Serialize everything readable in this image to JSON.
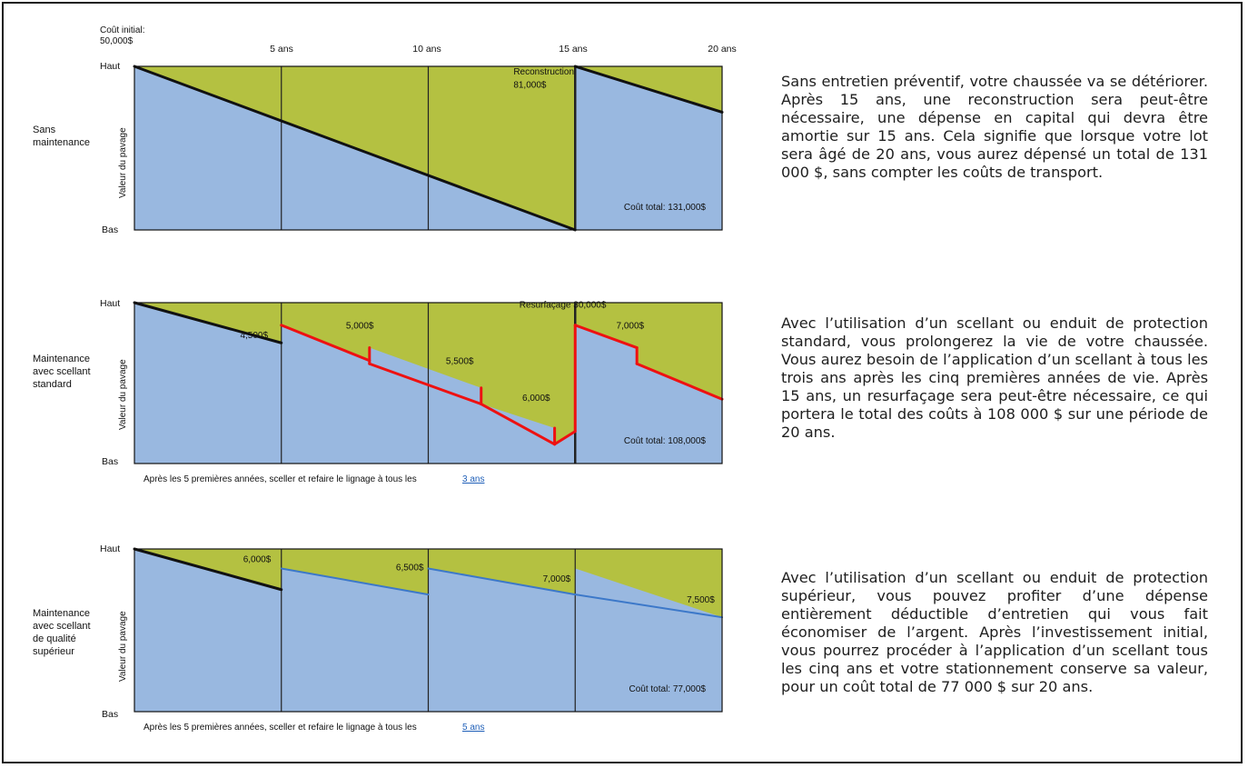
{
  "colors": {
    "sky": "#99b8e0",
    "green": "#b4c141",
    "red": "#ee1111",
    "blue_line": "#3c78c9",
    "border": "#1a1a1a"
  },
  "chart_data": [
    {
      "type": "line",
      "row_label": [
        "Sans",
        "maintenance"
      ],
      "initial_cost": [
        "Coût initial:",
        "50,000$"
      ],
      "x_ticks": [
        "5 ans",
        "10 ans",
        "15 ans",
        "20 ans"
      ],
      "xlim": [
        0,
        20
      ],
      "y_top": "Haut",
      "y_bottom": "Bas",
      "ylabel": "Valeur du pavage",
      "line_color": "black",
      "segments": [
        [
          [
            0,
            1.0
          ],
          [
            15,
            0.0
          ]
        ],
        [
          [
            15,
            1.0
          ],
          [
            20,
            0.72
          ]
        ]
      ],
      "vertical_drops": [
        15
      ],
      "annotations": [
        {
          "text": "Reconstruction",
          "x": 12.9,
          "y": 0.95
        },
        {
          "text": "81,000$",
          "x": 12.9,
          "y": 0.87
        }
      ],
      "total": "Coût total: 131,000$"
    },
    {
      "type": "line",
      "row_label": [
        "Maintenance",
        "avec scellant",
        "standard"
      ],
      "x_ticks": [
        "5 ans",
        "10 ans",
        "15 ans",
        "20 ans"
      ],
      "xlim": [
        0,
        20
      ],
      "y_top": "Haut",
      "y_bottom": "Bas",
      "ylabel": "Valeur du pavage",
      "segments_black": [
        [
          [
            0,
            1.0
          ],
          [
            5,
            0.75
          ]
        ]
      ],
      "segments_red": [
        [
          [
            5,
            0.86
          ],
          [
            8,
            0.64
          ]
        ],
        [
          [
            8,
            0.72
          ],
          [
            8,
            0.62
          ]
        ],
        [
          [
            8,
            0.62
          ],
          [
            11.8,
            0.37
          ]
        ],
        [
          [
            11.8,
            0.47
          ],
          [
            11.8,
            0.37
          ]
        ],
        [
          [
            11.8,
            0.37
          ],
          [
            14.3,
            0.12
          ]
        ],
        [
          [
            14.3,
            0.22
          ],
          [
            14.3,
            0.12
          ]
        ],
        [
          [
            14.3,
            0.12
          ],
          [
            15,
            0.2
          ]
        ],
        [
          [
            15,
            0.2
          ],
          [
            15,
            0.86
          ]
        ],
        [
          [
            15,
            0.86
          ],
          [
            17.1,
            0.72
          ]
        ],
        [
          [
            17.1,
            0.72
          ],
          [
            17.1,
            0.62
          ]
        ],
        [
          [
            17.1,
            0.62
          ],
          [
            20,
            0.4
          ]
        ]
      ],
      "annotations": [
        {
          "text": "4,500$",
          "x": 3.6,
          "y": 0.78
        },
        {
          "text": "5,000$",
          "x": 7.2,
          "y": 0.84
        },
        {
          "text": "5,500$",
          "x": 10.6,
          "y": 0.62
        },
        {
          "text": "6,000$",
          "x": 13.2,
          "y": 0.39
        },
        {
          "text": "Resurfaçage 30,000$",
          "x": 13.1,
          "y": 0.97
        },
        {
          "text": "7,000$",
          "x": 16.4,
          "y": 0.84
        }
      ],
      "total": "Coût total: 108,000$",
      "note": "Après les 5 premières années,  sceller et refaire le lignage à tous les",
      "note_link": "3 ans"
    },
    {
      "type": "line",
      "row_label": [
        "Maintenance",
        "avec scellant",
        "de qualité",
        "supérieur"
      ],
      "x_ticks": [
        "5 ans",
        "10 ans",
        "15 ans",
        "20 ans"
      ],
      "xlim": [
        0,
        20
      ],
      "y_top": "Haut",
      "y_bottom": "Bas",
      "ylabel": "Valeur du pavage",
      "segments_black": [
        [
          [
            0,
            1.0
          ],
          [
            5,
            0.75
          ]
        ]
      ],
      "segments_blue": [
        [
          [
            5,
            0.88
          ],
          [
            10,
            0.72
          ]
        ],
        [
          [
            10,
            0.88
          ],
          [
            15,
            0.72
          ]
        ],
        [
          [
            15,
            0.72
          ],
          [
            20,
            0.58
          ]
        ]
      ],
      "annotations": [
        {
          "text": "6,000$",
          "x": 3.7,
          "y": 0.92
        },
        {
          "text": "6,500$",
          "x": 8.9,
          "y": 0.87
        },
        {
          "text": "7,000$",
          "x": 13.9,
          "y": 0.8
        },
        {
          "text": "7,500$",
          "x": 18.8,
          "y": 0.67
        }
      ],
      "total": "Coût total: 77,000$",
      "note": "Après les 5 premières années,  sceller et refaire le lignage à tous les",
      "note_link": "5 ans"
    }
  ],
  "descriptions": [
    "Sans entretien préventif, votre chaussée va se détériorer. Après 15 ans, une reconstruction sera peut-être nécessaire, une dépense en capital qui devra être amortie sur 15 ans. Cela signifie que lorsque votre lot sera âgé de 20 ans, vous aurez dépensé un total de 131 000 $, sans compter les coûts de transport.",
    "Avec l’utilisation d’un scellant ou enduit de protection standard, vous prolongerez la vie de votre chaussée. Vous aurez besoin de l’application d’un scellant à tous les trois ans après les cinq premières années de vie. Après 15 ans, un resurfaçage sera peut-être nécessaire, ce qui portera le total des coûts à 108 000 $ sur une période de 20 ans.",
    "Avec l’utilisation d’un scellant ou enduit de protection supérieur, vous pouvez profiter d’une dépense entièrement déductible d’entretien qui vous fait économiser de l’argent. Après l’investissement initial, vous pourrez procéder à l’application d’un scellant tous les cinq ans et votre stationnement conserve sa valeur, pour un coût total de 77 000 $ sur 20 ans."
  ]
}
